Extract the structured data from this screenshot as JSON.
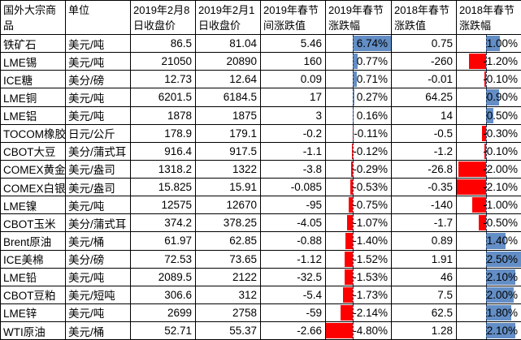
{
  "table": {
    "headers": [
      "国外大宗商品",
      "单位",
      "2019年2月8日收盘价",
      "2019年2月1日收盘价",
      "2019年春节间涨跌值",
      "2019年春节涨跌幅",
      "2018年春节涨跌值",
      "2018年春节涨跌幅"
    ],
    "rows": [
      {
        "name": "铁矿石",
        "unit": "美元/吨",
        "close_feb8": "86.5",
        "close_feb1": "81.04",
        "change_2019": "5.46",
        "pct_2019": "6.74%",
        "change_2018": "0.75",
        "pct_2018": "1.00%"
      },
      {
        "name": "LME锡",
        "unit": "美元/吨",
        "close_feb8": "21050",
        "close_feb1": "20890",
        "change_2019": "160",
        "pct_2019": "0.77%",
        "change_2018": "-260",
        "pct_2018": "-1.20%"
      },
      {
        "name": "ICE糖",
        "unit": "美分/磅",
        "close_feb8": "12.73",
        "close_feb1": "12.64",
        "change_2019": "0.09",
        "pct_2019": "0.71%",
        "change_2018": "-0.01",
        "pct_2018": "-0.10%"
      },
      {
        "name": "LME铜",
        "unit": "美元/吨",
        "close_feb8": "6201.5",
        "close_feb1": "6184.5",
        "change_2019": "17",
        "pct_2019": "0.27%",
        "change_2018": "64.25",
        "pct_2018": "0.90%"
      },
      {
        "name": "LME铝",
        "unit": "美元/吨",
        "close_feb8": "1878",
        "close_feb1": "1875",
        "change_2019": "3",
        "pct_2019": "0.16%",
        "change_2018": "14",
        "pct_2018": "0.50%"
      },
      {
        "name": "TOCOM橡胶",
        "unit": "日元/公斤",
        "close_feb8": "178.9",
        "close_feb1": "179.1",
        "change_2019": "-0.2",
        "pct_2019": "-0.11%",
        "change_2018": "-0.5",
        "pct_2018": "-0.30%"
      },
      {
        "name": "CBOT大豆",
        "unit": "美分/蒲式耳",
        "close_feb8": "916.4",
        "close_feb1": "917.5",
        "change_2019": "-1.1",
        "pct_2019": "-0.12%",
        "change_2018": "-1.2",
        "pct_2018": "-0.10%"
      },
      {
        "name": "COMEX黄金",
        "unit": "美元/盎司",
        "close_feb8": "1318.2",
        "close_feb1": "1322",
        "change_2019": "-3.8",
        "pct_2019": "-0.29%",
        "change_2018": "-26.8",
        "pct_2018": "-2.00%"
      },
      {
        "name": "COMEX白银",
        "unit": "美元/盎司",
        "close_feb8": "15.825",
        "close_feb1": "15.91",
        "change_2019": "-0.085",
        "pct_2019": "-0.53%",
        "change_2018": "-0.35",
        "pct_2018": "-2.10%"
      },
      {
        "name": "LME镍",
        "unit": "美元/吨",
        "close_feb8": "12575",
        "close_feb1": "12670",
        "change_2019": "-95",
        "pct_2019": "-0.75%",
        "change_2018": "-140",
        "pct_2018": "-1.00%"
      },
      {
        "name": "CBOT玉米",
        "unit": "美分/蒲式耳",
        "close_feb8": "374.2",
        "close_feb1": "378.25",
        "change_2019": "-4.05",
        "pct_2019": "-1.07%",
        "change_2018": "-1.7",
        "pct_2018": "-0.50%"
      },
      {
        "name": "Brent原油",
        "unit": "美元/桶",
        "close_feb8": "61.97",
        "close_feb1": "62.85",
        "change_2019": "-0.88",
        "pct_2019": "-1.40%",
        "change_2018": "0.89",
        "pct_2018": "1.40%"
      },
      {
        "name": "ICE美棉",
        "unit": "美分/磅",
        "close_feb8": "72.53",
        "close_feb1": "73.65",
        "change_2019": "-1.12",
        "pct_2019": "-1.52%",
        "change_2018": "1.91",
        "pct_2018": "2.50%"
      },
      {
        "name": "LME铅",
        "unit": "美元/吨",
        "close_feb8": "2089.5",
        "close_feb1": "2122",
        "change_2019": "-32.5",
        "pct_2019": "-1.53%",
        "change_2018": "46",
        "pct_2018": "2.10%"
      },
      {
        "name": "CBOT豆粕",
        "unit": "美元/短吨",
        "close_feb8": "306.6",
        "close_feb1": "312",
        "change_2019": "-5.4",
        "pct_2019": "-1.73%",
        "change_2018": "7.5",
        "pct_2018": "2.00%"
      },
      {
        "name": "LME锌",
        "unit": "美元/吨",
        "close_feb8": "2699",
        "close_feb1": "2758",
        "change_2019": "-59",
        "pct_2019": "-2.14%",
        "change_2018": "62.5",
        "pct_2018": "1.80%"
      },
      {
        "name": "WTI原油",
        "unit": "美元/桶",
        "close_feb8": "52.71",
        "close_feb1": "55.37",
        "change_2019": "-2.66",
        "pct_2019": "-4.80%",
        "change_2018": "1.28",
        "pct_2018": "2.10%"
      }
    ]
  },
  "colors": {
    "positive_bar": "#638EC6",
    "negative_bar": "#FF0000",
    "axis_line": "#17375D",
    "gridline": "#000000"
  }
}
